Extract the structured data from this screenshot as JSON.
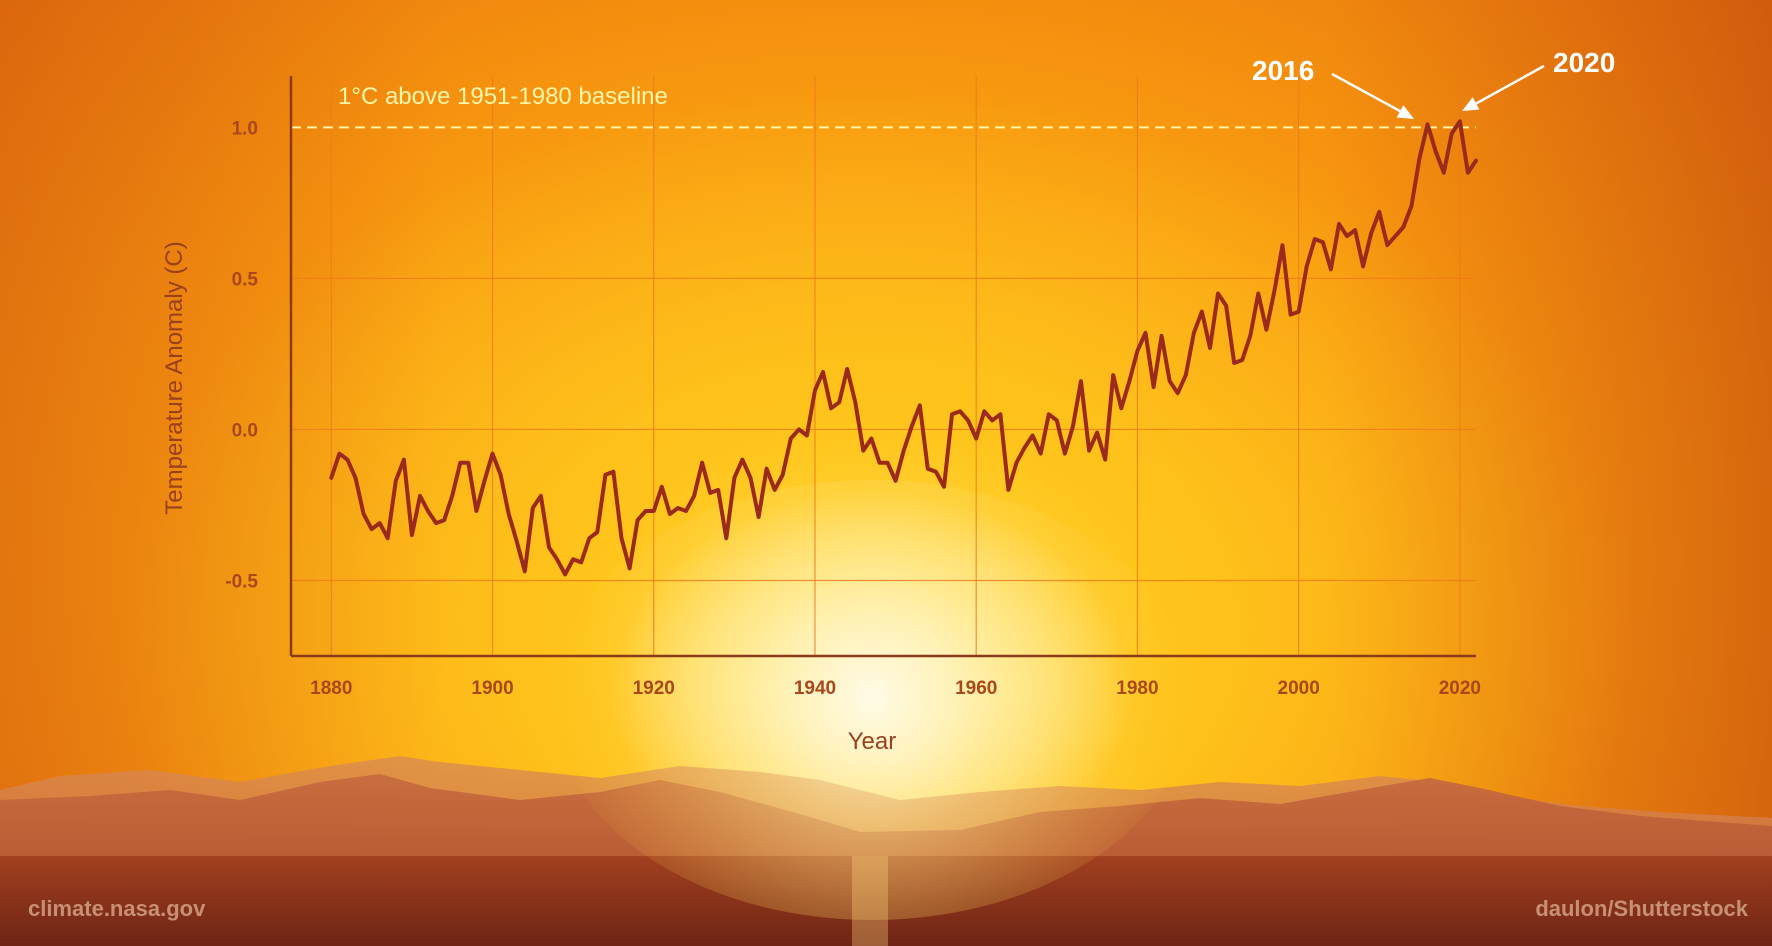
{
  "credits": {
    "source": "climate.nasa.gov",
    "photo": "daulon/Shutterstock"
  },
  "colors": {
    "line": "#9c2a1c",
    "grid": "#f07a1c",
    "axis": "#8c3a1c",
    "baseline": "#fff4a0",
    "callout": "#ffffff"
  },
  "chart_data": {
    "type": "line",
    "xlabel": "Year",
    "ylabel": "Temperature Anomaly (C)",
    "xlim": [
      1875,
      2022
    ],
    "ylim": [
      -0.75,
      1.17
    ],
    "x_ticks": [
      1880,
      1900,
      1920,
      1940,
      1960,
      1980,
      2000,
      2020
    ],
    "y_ticks": [
      1.0,
      0.5,
      0.0,
      -0.5
    ],
    "y_tick_labels": [
      "1.0",
      "0.5",
      "0.0",
      "-0.5"
    ],
    "grid": true,
    "reference_line": {
      "y": 1.0,
      "label": "1°C above 1951-1980 baseline",
      "style": "dashed"
    },
    "annotations": [
      {
        "label": "2016",
        "year": 2016,
        "value": 1.01
      },
      {
        "label": "2020",
        "year": 2020,
        "value": 1.02
      }
    ],
    "series": [
      {
        "x": [
          1880,
          1881,
          1882,
          1883,
          1884,
          1885,
          1886,
          1887,
          1888,
          1889,
          1890,
          1891,
          1892,
          1893,
          1894,
          1895,
          1896,
          1897,
          1898,
          1899,
          1900,
          1901,
          1902,
          1903,
          1904,
          1905,
          1906,
          1907,
          1908,
          1909,
          1910,
          1911,
          1912,
          1913,
          1914,
          1915,
          1916,
          1917,
          1918,
          1919,
          1920,
          1921,
          1922,
          1923,
          1924,
          1925,
          1926,
          1927,
          1928,
          1929,
          1930,
          1931,
          1932,
          1933,
          1934,
          1935,
          1936,
          1937,
          1938,
          1939,
          1940,
          1941,
          1942,
          1943,
          1944,
          1945,
          1946,
          1947,
          1948,
          1949,
          1950,
          1951,
          1952,
          1953,
          1954,
          1955,
          1956,
          1957,
          1958,
          1959,
          1960,
          1961,
          1962,
          1963,
          1964,
          1965,
          1966,
          1967,
          1968,
          1969,
          1970,
          1971,
          1972,
          1973,
          1974,
          1975,
          1976,
          1977,
          1978,
          1979,
          1980,
          1981,
          1982,
          1983,
          1984,
          1985,
          1986,
          1987,
          1988,
          1989,
          1990,
          1991,
          1992,
          1993,
          1994,
          1995,
          1996,
          1997,
          1998,
          1999,
          2000,
          2001,
          2002,
          2003,
          2004,
          2005,
          2006,
          2007,
          2008,
          2009,
          2010,
          2011,
          2012,
          2013,
          2014,
          2015,
          2016,
          2017,
          2018,
          2019,
          2020,
          2021,
          2022
        ],
        "values": [
          -0.16,
          -0.08,
          -0.1,
          -0.16,
          -0.28,
          -0.33,
          -0.31,
          -0.36,
          -0.17,
          -0.1,
          -0.35,
          -0.22,
          -0.27,
          -0.31,
          -0.3,
          -0.22,
          -0.11,
          -0.11,
          -0.27,
          -0.17,
          -0.08,
          -0.15,
          -0.28,
          -0.37,
          -0.47,
          -0.26,
          -0.22,
          -0.39,
          -0.43,
          -0.48,
          -0.43,
          -0.44,
          -0.36,
          -0.34,
          -0.15,
          -0.14,
          -0.36,
          -0.46,
          -0.3,
          -0.27,
          -0.27,
          -0.19,
          -0.28,
          -0.26,
          -0.27,
          -0.22,
          -0.11,
          -0.21,
          -0.2,
          -0.36,
          -0.16,
          -0.1,
          -0.16,
          -0.29,
          -0.13,
          -0.2,
          -0.15,
          -0.03,
          0.0,
          -0.02,
          0.13,
          0.19,
          0.07,
          0.09,
          0.2,
          0.09,
          -0.07,
          -0.03,
          -0.11,
          -0.11,
          -0.17,
          -0.07,
          0.01,
          0.08,
          -0.13,
          -0.14,
          -0.19,
          0.05,
          0.06,
          0.03,
          -0.03,
          0.06,
          0.03,
          0.05,
          -0.2,
          -0.11,
          -0.06,
          -0.02,
          -0.08,
          0.05,
          0.03,
          -0.08,
          0.01,
          0.16,
          -0.07,
          -0.01,
          -0.1,
          0.18,
          0.07,
          0.16,
          0.26,
          0.32,
          0.14,
          0.31,
          0.16,
          0.12,
          0.18,
          0.32,
          0.39,
          0.27,
          0.45,
          0.41,
          0.22,
          0.23,
          0.31,
          0.45,
          0.33,
          0.46,
          0.61,
          0.38,
          0.39,
          0.54,
          0.63,
          0.62,
          0.53,
          0.68,
          0.64,
          0.66,
          0.54,
          0.65,
          0.72,
          0.61,
          0.64,
          0.67,
          0.74,
          0.9,
          1.01,
          0.92,
          0.85,
          0.98,
          1.02,
          0.85,
          0.89
        ]
      }
    ]
  }
}
